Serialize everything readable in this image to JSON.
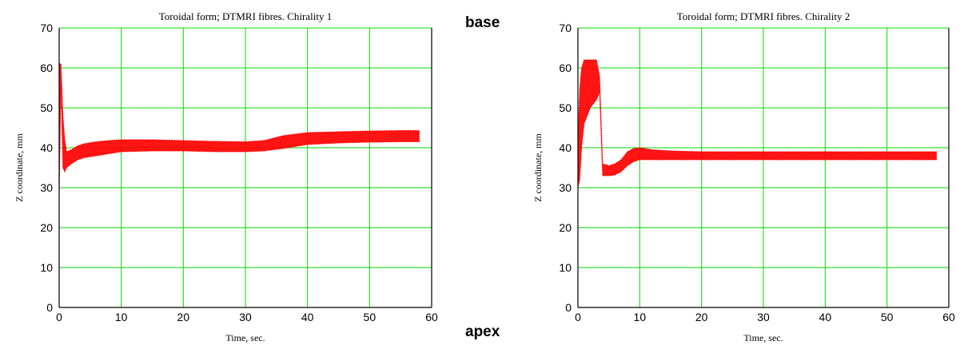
{
  "side_labels": {
    "top": "base",
    "bottom": "apex"
  },
  "colors": {
    "grid": "#00dd00",
    "band": "#ff0000",
    "frame": "#000000"
  },
  "chart_data": [
    {
      "type": "line",
      "title": "Toroidal form; DTMRI fibres. Chirality 1",
      "xlabel": "Time, sec.",
      "ylabel": "Z coordinate, mm",
      "xlim": [
        0,
        60
      ],
      "ylim": [
        0,
        70
      ],
      "xticks": [
        "0",
        "10",
        "20",
        "30",
        "40",
        "50",
        "60"
      ],
      "yticks": [
        "0",
        "10",
        "20",
        "30",
        "40",
        "50",
        "60",
        "70"
      ],
      "grid": true,
      "series": [
        {
          "x": [
            0.0,
            0.3,
            0.6,
            0.9,
            1.2,
            2,
            3,
            4,
            6,
            8,
            10,
            15,
            20,
            25,
            30,
            33,
            36,
            40,
            45,
            50,
            55,
            58
          ],
          "upper": [
            61,
            61,
            48,
            42,
            39,
            39.5,
            40.5,
            41,
            41.5,
            41.8,
            42,
            42,
            41.8,
            41.6,
            41.5,
            41.8,
            43,
            43.8,
            44,
            44.2,
            44.3,
            44.3
          ],
          "lower": [
            28,
            56,
            35,
            34,
            35,
            36,
            37,
            37.5,
            38,
            38.5,
            39,
            39.2,
            39.2,
            39,
            39,
            39.2,
            39.8,
            40.8,
            41.2,
            41.4,
            41.5,
            41.5
          ]
        }
      ]
    },
    {
      "type": "line",
      "title": "Toroidal form; DTMRI fibres. Chirality 2",
      "xlabel": "Time, sec.",
      "ylabel": "Z coordinate, mm",
      "xlim": [
        0,
        60
      ],
      "ylim": [
        0,
        70
      ],
      "xticks": [
        "0",
        "10",
        "20",
        "30",
        "40",
        "50",
        "60"
      ],
      "yticks": [
        "0",
        "10",
        "20",
        "30",
        "40",
        "50",
        "60",
        "70"
      ],
      "grid": true,
      "series": [
        {
          "x": [
            0.0,
            0.3,
            0.6,
            1,
            2,
            3,
            3.5,
            4,
            5,
            6,
            7,
            8,
            9,
            10,
            12,
            15,
            20,
            30,
            40,
            50,
            58
          ],
          "upper": [
            42,
            55,
            60,
            62,
            62,
            62,
            58,
            36,
            35.5,
            36,
            37,
            39,
            39.8,
            40,
            39.5,
            39.2,
            39,
            39,
            39,
            39,
            39
          ],
          "lower": [
            30,
            32,
            40,
            46,
            50,
            52,
            54,
            33,
            33,
            33.2,
            34,
            35.5,
            36.5,
            37,
            37,
            37,
            37,
            37,
            37,
            37,
            37
          ]
        }
      ]
    }
  ]
}
